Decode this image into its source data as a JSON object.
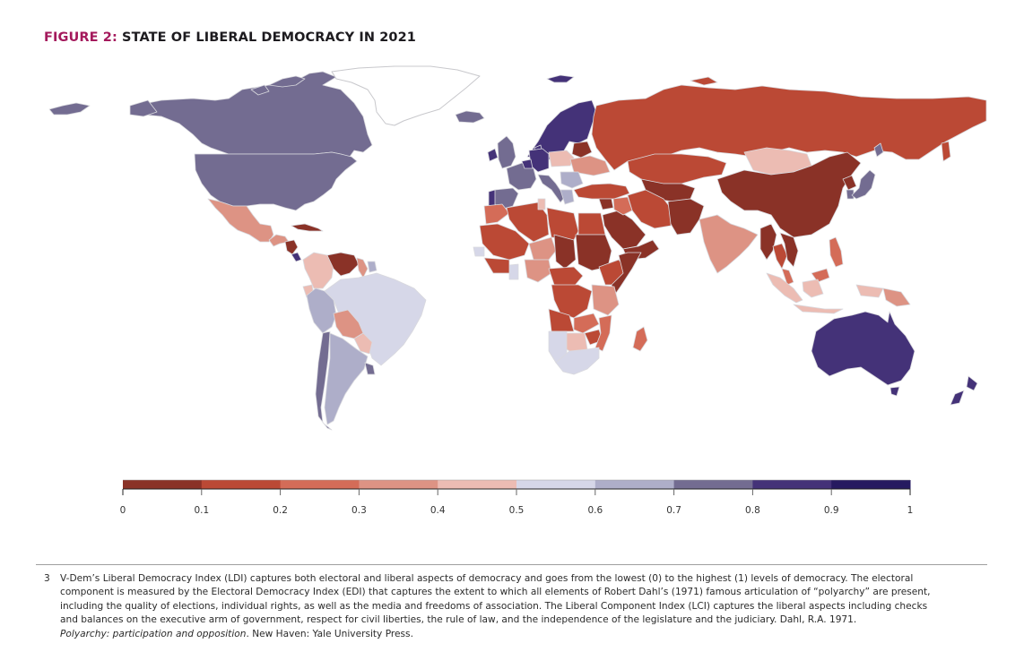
{
  "figure": {
    "label": "FIGURE 2:",
    "title": " STATE OF LIBERAL DEMOCRACY IN 2021"
  },
  "chart_data": {
    "type": "choropleth",
    "title": "FIGURE 2: STATE OF LIBERAL DEMOCRACY IN 2021",
    "metric": "Liberal Democracy Index (LDI)",
    "year": 2021,
    "range": [
      0,
      1
    ],
    "legend": {
      "placement": "bottom",
      "bins": [
        {
          "from": 0.0,
          "to": 0.1,
          "color": "#8a3227"
        },
        {
          "from": 0.1,
          "to": 0.2,
          "color": "#bb4935"
        },
        {
          "from": 0.2,
          "to": 0.3,
          "color": "#d46c58"
        },
        {
          "from": 0.3,
          "to": 0.4,
          "color": "#dd9384"
        },
        {
          "from": 0.4,
          "to": 0.5,
          "color": "#ecbcb3"
        },
        {
          "from": 0.5,
          "to": 0.6,
          "color": "#d6d7e8"
        },
        {
          "from": 0.6,
          "to": 0.7,
          "color": "#aeaec9"
        },
        {
          "from": 0.7,
          "to": 0.8,
          "color": "#736c91"
        },
        {
          "from": 0.8,
          "to": 0.9,
          "color": "#443278"
        },
        {
          "from": 0.9,
          "to": 1.0,
          "color": "#261a60"
        }
      ],
      "tick_labels": [
        "0",
        "0.1",
        "0.2",
        "0.3",
        "0.4",
        "0.5",
        "0.6",
        "0.7",
        "0.8",
        "0.9",
        "1"
      ]
    },
    "regions": [
      {
        "name": "Canada",
        "bin": 7
      },
      {
        "name": "United States",
        "bin": 7
      },
      {
        "name": "Greenland",
        "bin": null
      },
      {
        "name": "Iceland",
        "bin": 7
      },
      {
        "name": "Mexico",
        "bin": 3
      },
      {
        "name": "Guatemala/Honduras",
        "bin": 3
      },
      {
        "name": "Nicaragua",
        "bin": 0
      },
      {
        "name": "Costa Rica",
        "bin": 8
      },
      {
        "name": "Cuba",
        "bin": 0
      },
      {
        "name": "Colombia",
        "bin": 4
      },
      {
        "name": "Venezuela",
        "bin": 0
      },
      {
        "name": "Guyana",
        "bin": 3
      },
      {
        "name": "Suriname",
        "bin": 6
      },
      {
        "name": "Ecuador",
        "bin": 4
      },
      {
        "name": "Peru",
        "bin": 6
      },
      {
        "name": "Brazil",
        "bin": 5
      },
      {
        "name": "Bolivia",
        "bin": 3
      },
      {
        "name": "Paraguay",
        "bin": 4
      },
      {
        "name": "Chile",
        "bin": 7
      },
      {
        "name": "Argentina",
        "bin": 6
      },
      {
        "name": "Uruguay",
        "bin": 7
      },
      {
        "name": "Norway/Sweden/Finland",
        "bin": 8
      },
      {
        "name": "Denmark",
        "bin": 8
      },
      {
        "name": "United Kingdom",
        "bin": 7
      },
      {
        "name": "Ireland",
        "bin": 8
      },
      {
        "name": "France",
        "bin": 7
      },
      {
        "name": "Spain",
        "bin": 7
      },
      {
        "name": "Portugal",
        "bin": 8
      },
      {
        "name": "Germany",
        "bin": 8
      },
      {
        "name": "Italy",
        "bin": 7
      },
      {
        "name": "Poland",
        "bin": 4
      },
      {
        "name": "Belarus",
        "bin": 0
      },
      {
        "name": "Ukraine",
        "bin": 3
      },
      {
        "name": "Romania/Bulgaria",
        "bin": 6
      },
      {
        "name": "Greece",
        "bin": 6
      },
      {
        "name": "Russia",
        "bin": 1
      },
      {
        "name": "Turkey",
        "bin": 1
      },
      {
        "name": "Kazakhstan",
        "bin": 1
      },
      {
        "name": "Central Asia",
        "bin": 0
      },
      {
        "name": "Iran",
        "bin": 1
      },
      {
        "name": "Afghanistan/Pakistan",
        "bin": 0
      },
      {
        "name": "Syria",
        "bin": 0
      },
      {
        "name": "Saudi Arabia",
        "bin": 0
      },
      {
        "name": "Yemen/Oman",
        "bin": 0
      },
      {
        "name": "Iraq",
        "bin": 2
      },
      {
        "name": "Mongolia",
        "bin": 4
      },
      {
        "name": "China",
        "bin": 0
      },
      {
        "name": "Korea (North)",
        "bin": 0
      },
      {
        "name": "South Korea",
        "bin": 7
      },
      {
        "name": "Japan",
        "bin": 7
      },
      {
        "name": "India",
        "bin": 3
      },
      {
        "name": "Myanmar",
        "bin": 0
      },
      {
        "name": "Thailand",
        "bin": 1
      },
      {
        "name": "Vietnam/Laos/Cambodia",
        "bin": 0
      },
      {
        "name": "Philippines",
        "bin": 2
      },
      {
        "name": "Malaysia",
        "bin": 2
      },
      {
        "name": "Indonesia",
        "bin": 4
      },
      {
        "name": "Papua New Guinea",
        "bin": 3
      },
      {
        "name": "Australia",
        "bin": 8
      },
      {
        "name": "New Zealand",
        "bin": 8
      },
      {
        "name": "Morocco",
        "bin": 2
      },
      {
        "name": "Algeria",
        "bin": 1
      },
      {
        "name": "Libya",
        "bin": 1
      },
      {
        "name": "Egypt",
        "bin": 1
      },
      {
        "name": "Tunisia",
        "bin": 4
      },
      {
        "name": "Mauritania/Mali",
        "bin": 1
      },
      {
        "name": "Niger",
        "bin": 3
      },
      {
        "name": "Chad",
        "bin": 0
      },
      {
        "name": "Sudan",
        "bin": 0
      },
      {
        "name": "Ethiopia",
        "bin": 1
      },
      {
        "name": "Somalia/Eritrea",
        "bin": 0
      },
      {
        "name": "Senegal",
        "bin": 5
      },
      {
        "name": "Ghana",
        "bin": 5
      },
      {
        "name": "Nigeria",
        "bin": 3
      },
      {
        "name": "Central Africa",
        "bin": 1
      },
      {
        "name": "DR Congo",
        "bin": 1
      },
      {
        "name": "Angola",
        "bin": 1
      },
      {
        "name": "Kenya/Tanzania",
        "bin": 3
      },
      {
        "name": "Zambia",
        "bin": 2
      },
      {
        "name": "Zimbabwe",
        "bin": 1
      },
      {
        "name": "Mozambique",
        "bin": 2
      },
      {
        "name": "Namibia",
        "bin": 5
      },
      {
        "name": "Botswana",
        "bin": 4
      },
      {
        "name": "South Africa",
        "bin": 5
      },
      {
        "name": "Madagascar",
        "bin": 2
      }
    ]
  },
  "footnote": {
    "number": "3",
    "lines": [
      "V-Dem’s Liberal Democracy Index (LDI) captures both electoral and liberal aspects of democracy and goes from the lowest (0) to the highest (1) levels of democracy. The electoral",
      "component is measured by the Electoral Democracy Index (EDI) that captures the extent to which all elements of Robert Dahl’s (1971) famous articulation of “polyarchy” are present,",
      "including the quality of elections, individual rights, as well as the media and freedoms of association. The Liberal Component Index (LCI) captures the liberal aspects including checks",
      "and balances on the executive arm of government, respect for civil liberties, the rule of law, and the independence of the legislature and the judiciary. Dahl, R.A. 1971."
    ],
    "last_line_italic": "Polyarchy: participation and opposition",
    "last_line_rest": ". New Haven: Yale University Press."
  }
}
